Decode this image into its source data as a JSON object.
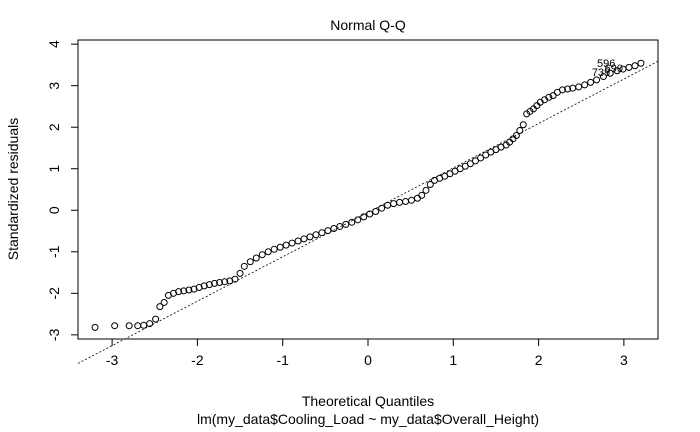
{
  "chart_data": {
    "type": "scatter",
    "title": "Normal Q-Q",
    "xlabel": "Theoretical Quantiles",
    "subtitle": "lm(my_data$Cooling_Load ~ my_data$Overall_Height)",
    "ylabel": "Standardized residuals",
    "xlim": [
      -3.4,
      3.4
    ],
    "ylim": [
      -3.1,
      4.1
    ],
    "xticks": [
      -3,
      -2,
      -1,
      0,
      1,
      2,
      3
    ],
    "yticks": [
      -3,
      -2,
      -1,
      0,
      1,
      2,
      3,
      4
    ],
    "grid": false,
    "reference_line": {
      "slope": 1.07,
      "intercept": -0.05
    },
    "outlier_labels": [
      {
        "text": "596",
        "x": 2.9,
        "y": 3.52
      },
      {
        "text": "690",
        "x": 2.99,
        "y": 3.4
      },
      {
        "text": "739",
        "x": 2.84,
        "y": 3.3
      }
    ],
    "points": [
      [
        -3.2,
        -2.82
      ],
      [
        -2.97,
        -2.78
      ],
      [
        -2.8,
        -2.78
      ],
      [
        -2.7,
        -2.78
      ],
      [
        -2.63,
        -2.77
      ],
      [
        -2.56,
        -2.73
      ],
      [
        -2.49,
        -2.62
      ],
      [
        -2.44,
        -2.32
      ],
      [
        -2.39,
        -2.22
      ],
      [
        -2.34,
        -2.05
      ],
      [
        -2.28,
        -2.0
      ],
      [
        -2.22,
        -1.96
      ],
      [
        -2.16,
        -1.94
      ],
      [
        -2.1,
        -1.92
      ],
      [
        -2.04,
        -1.9
      ],
      [
        -1.98,
        -1.86
      ],
      [
        -1.92,
        -1.82
      ],
      [
        -1.86,
        -1.79
      ],
      [
        -1.8,
        -1.76
      ],
      [
        -1.74,
        -1.74
      ],
      [
        -1.68,
        -1.72
      ],
      [
        -1.62,
        -1.7
      ],
      [
        -1.56,
        -1.66
      ],
      [
        -1.5,
        -1.52
      ],
      [
        -1.45,
        -1.35
      ],
      [
        -1.38,
        -1.24
      ],
      [
        -1.31,
        -1.15
      ],
      [
        -1.24,
        -1.07
      ],
      [
        -1.17,
        -1.0
      ],
      [
        -1.1,
        -0.94
      ],
      [
        -1.03,
        -0.89
      ],
      [
        -0.96,
        -0.84
      ],
      [
        -0.89,
        -0.79
      ],
      [
        -0.82,
        -0.74
      ],
      [
        -0.75,
        -0.69
      ],
      [
        -0.68,
        -0.64
      ],
      [
        -0.61,
        -0.59
      ],
      [
        -0.54,
        -0.54
      ],
      [
        -0.47,
        -0.49
      ],
      [
        -0.4,
        -0.44
      ],
      [
        -0.33,
        -0.39
      ],
      [
        -0.26,
        -0.34
      ],
      [
        -0.19,
        -0.29
      ],
      [
        -0.12,
        -0.23
      ],
      [
        -0.05,
        -0.16
      ],
      [
        0.02,
        -0.09
      ],
      [
        0.09,
        -0.03
      ],
      [
        0.16,
        0.05
      ],
      [
        0.23,
        0.12
      ],
      [
        0.3,
        0.16
      ],
      [
        0.37,
        0.19
      ],
      [
        0.44,
        0.21
      ],
      [
        0.51,
        0.24
      ],
      [
        0.58,
        0.29
      ],
      [
        0.63,
        0.36
      ],
      [
        0.68,
        0.48
      ],
      [
        0.73,
        0.62
      ],
      [
        0.78,
        0.72
      ],
      [
        0.84,
        0.77
      ],
      [
        0.9,
        0.82
      ],
      [
        0.96,
        0.88
      ],
      [
        1.02,
        0.94
      ],
      [
        1.08,
        1.0
      ],
      [
        1.14,
        1.06
      ],
      [
        1.2,
        1.12
      ],
      [
        1.26,
        1.19
      ],
      [
        1.32,
        1.26
      ],
      [
        1.38,
        1.33
      ],
      [
        1.44,
        1.4
      ],
      [
        1.5,
        1.46
      ],
      [
        1.56,
        1.52
      ],
      [
        1.62,
        1.57
      ],
      [
        1.66,
        1.64
      ],
      [
        1.7,
        1.72
      ],
      [
        1.74,
        1.8
      ],
      [
        1.78,
        1.92
      ],
      [
        1.82,
        2.06
      ],
      [
        1.86,
        2.32
      ],
      [
        1.9,
        2.38
      ],
      [
        1.94,
        2.44
      ],
      [
        1.98,
        2.52
      ],
      [
        2.02,
        2.6
      ],
      [
        2.07,
        2.66
      ],
      [
        2.12,
        2.72
      ],
      [
        2.17,
        2.76
      ],
      [
        2.22,
        2.84
      ],
      [
        2.28,
        2.9
      ],
      [
        2.34,
        2.92
      ],
      [
        2.4,
        2.94
      ],
      [
        2.47,
        2.97
      ],
      [
        2.54,
        3.02
      ],
      [
        2.61,
        3.08
      ],
      [
        2.68,
        3.14
      ],
      [
        2.76,
        3.22
      ],
      [
        2.84,
        3.3
      ],
      [
        2.92,
        3.36
      ],
      [
        2.99,
        3.4
      ],
      [
        3.06,
        3.44
      ],
      [
        3.13,
        3.48
      ],
      [
        3.2,
        3.54
      ]
    ]
  }
}
